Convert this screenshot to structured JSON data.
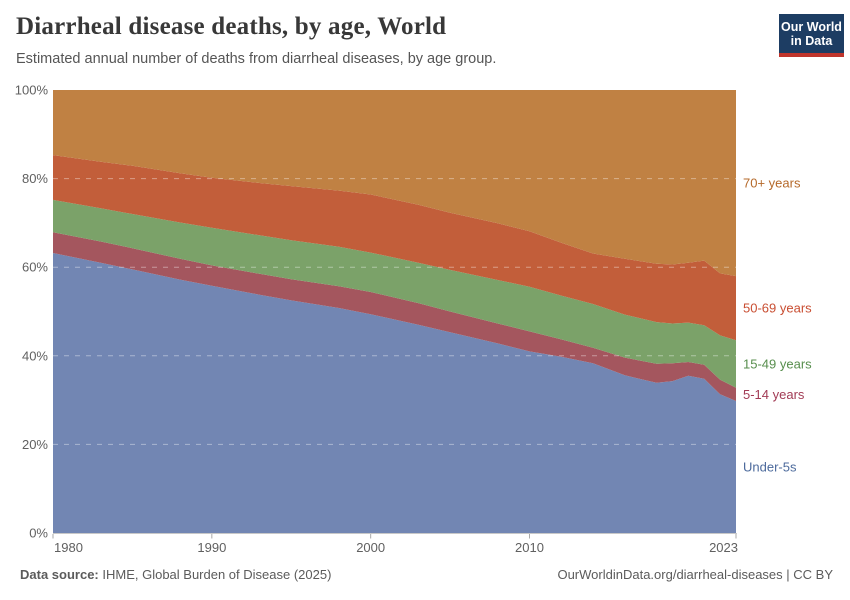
{
  "header": {
    "title": "Diarrheal disease deaths, by age, World",
    "subtitle": "Estimated annual number of deaths from diarrheal diseases, by age group."
  },
  "logo": {
    "line1": "Our World",
    "line2": "in Data",
    "bg_color": "#1d3d63",
    "bar_color": "#c0352c"
  },
  "chart_data": {
    "type": "area",
    "stacked": true,
    "normalized_to_100pct": true,
    "title": "Diarrheal disease deaths, by age, World",
    "xlabel": "",
    "ylabel": "",
    "unit": "%",
    "xlim": [
      1980,
      2023
    ],
    "ylim": [
      0,
      100
    ],
    "grid": "dashed-light-overlay",
    "legend_position": "right-inline",
    "x": [
      1980,
      1983,
      1985,
      1988,
      1990,
      1993,
      1995,
      1998,
      2000,
      2003,
      2005,
      2008,
      2010,
      2012,
      2014,
      2016,
      2018,
      2019,
      2020,
      2021,
      2022,
      2023
    ],
    "series": [
      {
        "name": "Under-5s",
        "fill": "#7286b3",
        "label_color": "#4c6a9c",
        "values": [
          63.2,
          61.0,
          59.5,
          57.2,
          55.8,
          53.8,
          52.5,
          50.8,
          49.4,
          47.0,
          45.3,
          42.8,
          41.0,
          39.8,
          38.3,
          35.6,
          33.9,
          34.3,
          35.5,
          34.8,
          31.3,
          29.8
        ]
      },
      {
        "name": "5-14 years",
        "fill": "#a4565e",
        "label_color": "#a23b55",
        "values": [
          4.7,
          4.8,
          4.8,
          4.7,
          4.6,
          4.7,
          4.8,
          4.9,
          5.0,
          4.9,
          4.7,
          4.5,
          4.5,
          3.9,
          3.5,
          4.0,
          4.3,
          4.0,
          3.1,
          3.2,
          3.3,
          3.0
        ]
      },
      {
        "name": "15-49 years",
        "fill": "#7ba269",
        "label_color": "#578e4d",
        "values": [
          7.3,
          7.5,
          7.7,
          8.2,
          8.5,
          8.7,
          8.8,
          8.9,
          8.9,
          9.1,
          9.4,
          9.8,
          10.1,
          9.9,
          9.9,
          9.7,
          9.4,
          9.0,
          8.9,
          8.9,
          10.0,
          10.7
        ]
      },
      {
        "name": "50-69 years",
        "fill": "#c25e3a",
        "label_color": "#c94e32",
        "values": [
          10.1,
          10.5,
          10.9,
          11.1,
          11.3,
          11.8,
          12.2,
          12.7,
          13.1,
          13.1,
          12.9,
          12.8,
          12.5,
          11.9,
          11.4,
          12.6,
          13.2,
          13.3,
          13.5,
          14.6,
          14.0,
          14.5
        ]
      },
      {
        "name": "70+ years",
        "fill": "#c08143",
        "label_color": "#b5692a",
        "values": [
          14.7,
          16.2,
          17.1,
          18.8,
          19.8,
          21.0,
          21.7,
          22.7,
          23.6,
          25.9,
          27.7,
          30.1,
          31.9,
          34.5,
          36.9,
          38.1,
          39.2,
          39.4,
          39.0,
          38.5,
          41.4,
          42.0
        ]
      }
    ],
    "xticks": {
      "values": [
        1980,
        1990,
        2000,
        2010,
        2023
      ],
      "labels": [
        "1980",
        "1990",
        "2000",
        "2010",
        "2023"
      ]
    },
    "yticks": {
      "values": [
        0,
        20,
        40,
        60,
        80,
        100
      ],
      "labels": [
        "0%",
        "20%",
        "40%",
        "60%",
        "80%",
        "100%"
      ]
    }
  },
  "footer": {
    "source_label": "Data source:",
    "source_value": " IHME, Global Burden of Disease (2025)",
    "right_text": "OurWorldinData.org/diarrheal-diseases | CC BY"
  },
  "colors": {
    "axis_text": "#606060",
    "axis_line": "#c8c8c8",
    "tick_mark": "#aaaaaa",
    "gridline": "rgba(255,255,255,0.4)"
  }
}
